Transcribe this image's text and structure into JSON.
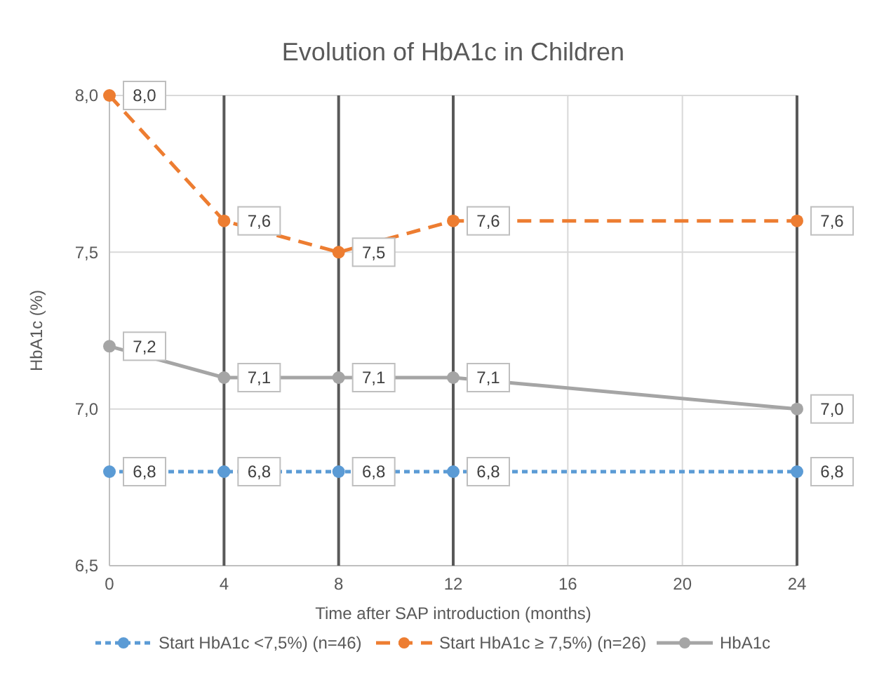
{
  "chart_data": {
    "type": "line",
    "title": "Evolution of HbA1c in Children",
    "xlabel": "Time after SAP introduction (months)",
    "ylabel": "HbA1c (%)",
    "x": [
      0,
      4,
      8,
      12,
      24
    ],
    "xlim": [
      0,
      24
    ],
    "xticks": [
      0,
      4,
      8,
      12,
      16,
      20,
      24
    ],
    "ylim": [
      6.5,
      8
    ],
    "yticks": [
      {
        "value": 6.5,
        "label": "6,5"
      },
      {
        "value": 7,
        "label": "7,0"
      },
      {
        "value": 7.5,
        "label": "7,5"
      },
      {
        "value": 8,
        "label": "8,0"
      }
    ],
    "grid": true,
    "legend": "bottom",
    "marker": "circle",
    "series": [
      {
        "name": "Start HbA1c <7,5%) (n=46)",
        "color": "#5b9bd5",
        "line_style": "dotted",
        "values": [
          6.8,
          6.8,
          6.8,
          6.8,
          6.8
        ],
        "value_labels": [
          "6,8",
          "6,8",
          "6,8",
          "6,8",
          "6,8"
        ]
      },
      {
        "name": "Start HbA1c ≥ 7,5%) (n=26)",
        "color": "#ed7d31",
        "line_style": "dashed",
        "values": [
          8.0,
          7.6,
          7.5,
          7.6,
          7.6
        ],
        "value_labels": [
          "8,0",
          "7,6",
          "7,5",
          "7,6",
          "7,6"
        ],
        "errors": [
          null,
          [
            6.5,
            8.0
          ],
          [
            6.5,
            8.0
          ],
          [
            6.5,
            8.0
          ],
          [
            6.5,
            8.0
          ]
        ]
      },
      {
        "name": "HbA1c",
        "color": "#a5a5a5",
        "line_style": "solid",
        "values": [
          7.2,
          7.1,
          7.1,
          7.1,
          7.0
        ],
        "value_labels": [
          "7,2",
          "7,1",
          "7,1",
          "7,1",
          "7,0"
        ]
      }
    ]
  }
}
